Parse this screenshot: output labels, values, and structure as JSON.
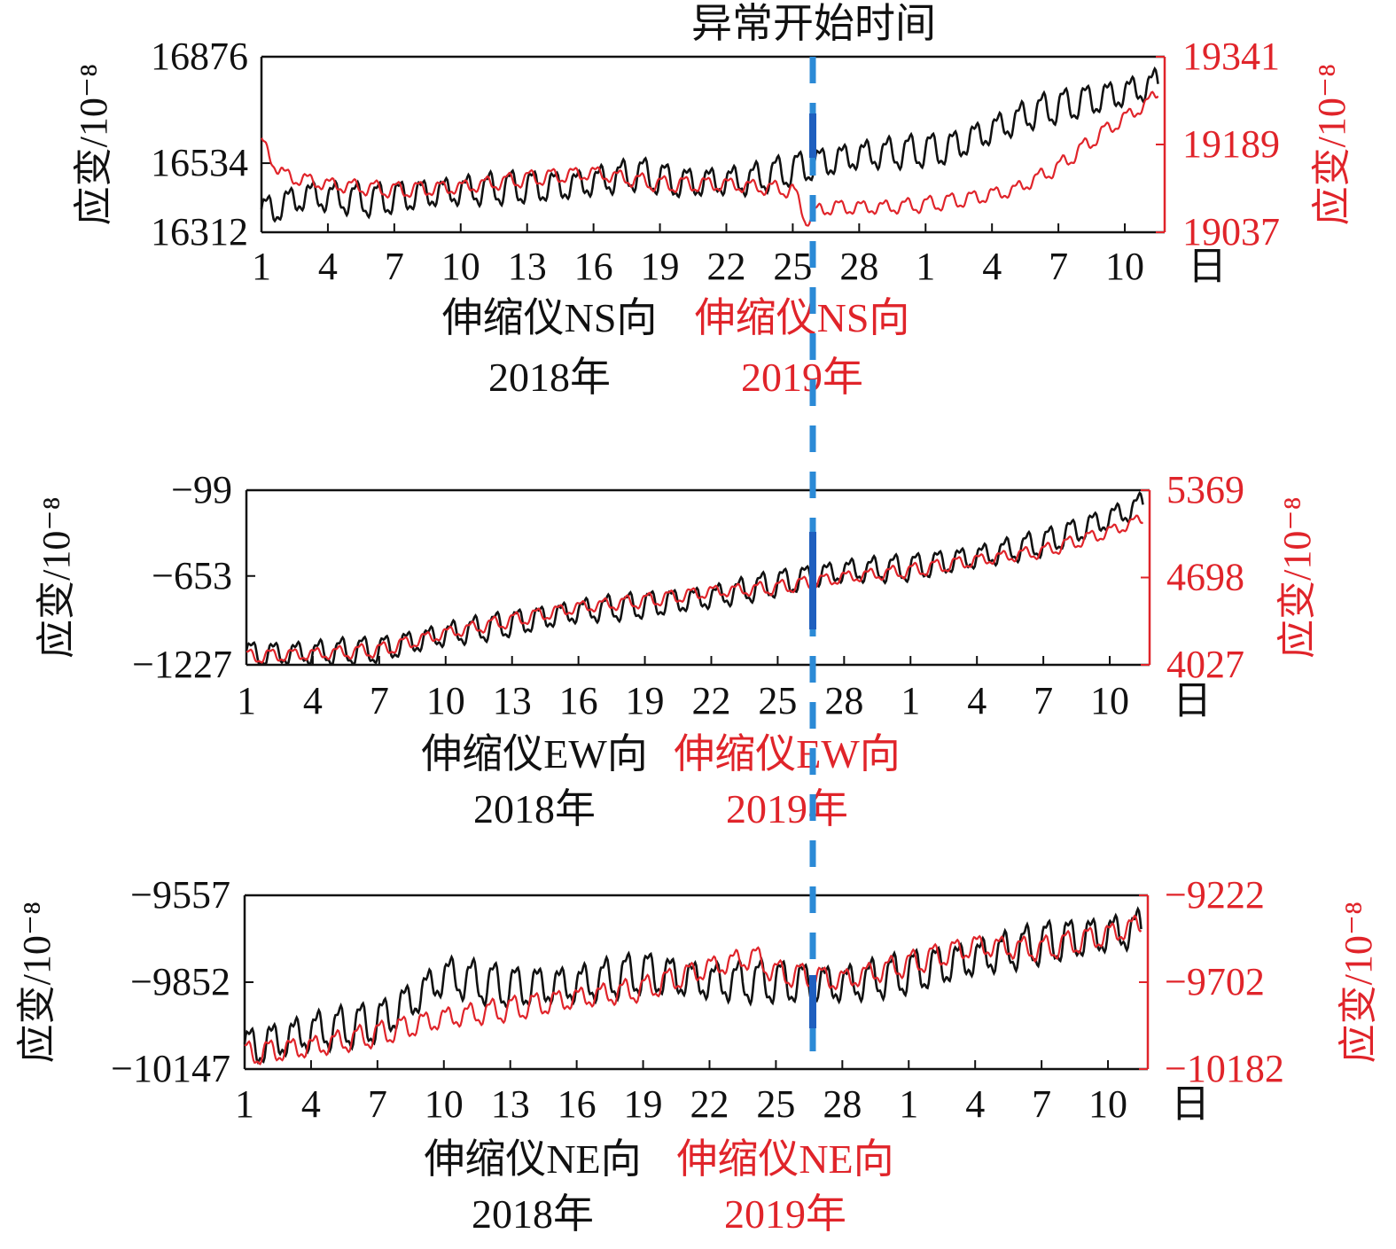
{
  "figure": {
    "title": "异常开始时间",
    "colors": {
      "series2018": "#111111",
      "series2019": "#e0242a",
      "marker": "#1f5fbf",
      "marker_light": "#2b8ad6"
    }
  },
  "chart_data": [
    {
      "type": "line",
      "x_tick_labels": [
        "1",
        "4",
        "7",
        "10",
        "13",
        "16",
        "19",
        "22",
        "25",
        "28",
        "1",
        "4",
        "7",
        "10"
      ],
      "x_unit_label": "日",
      "ylabel_left": "应变/10⁻⁸",
      "ylabel_right": "应变/10⁻⁸",
      "left_axis": {
        "ticks": [
          "16876",
          "16534",
          "16312"
        ],
        "ylim": [
          16312,
          16876
        ]
      },
      "right_axis": {
        "ticks": [
          "19341",
          "19189",
          "19037"
        ],
        "ylim": [
          19037,
          19341
        ]
      },
      "series": [
        {
          "name": "伸缩仪NS向",
          "year": "2018年",
          "axis": "left",
          "color": "#111111",
          "trend": [
            [
              1,
              16372
            ],
            [
              3,
              16430
            ],
            [
              6,
              16415
            ],
            [
              9,
              16440
            ],
            [
              12,
              16455
            ],
            [
              15,
              16462
            ],
            [
              18,
              16500
            ],
            [
              20,
              16470
            ],
            [
              23,
              16480
            ],
            [
              26,
              16530
            ],
            [
              28,
              16560
            ],
            [
              32,
              16580
            ],
            [
              36,
              16700
            ],
            [
              40,
              16760
            ],
            [
              41.5,
              16790
            ]
          ],
          "amplitude": 55
        },
        {
          "name": "伸缩仪NS向",
          "year": "2019年",
          "axis": "right",
          "color": "#e0242a",
          "trend": [
            [
              1,
              19190
            ],
            [
              2,
              19135
            ],
            [
              4,
              19120
            ],
            [
              7,
              19110
            ],
            [
              10,
              19115
            ],
            [
              13,
              19130
            ],
            [
              16,
              19140
            ],
            [
              19,
              19120
            ],
            [
              22,
              19120
            ],
            [
              25,
              19110
            ],
            [
              25.6,
              19060
            ],
            [
              26.5,
              19080
            ],
            [
              29,
              19080
            ],
            [
              31,
              19085
            ],
            [
              33,
              19095
            ],
            [
              35,
              19110
            ],
            [
              37,
              19150
            ],
            [
              39,
              19210
            ],
            [
              41,
              19260
            ],
            [
              41.5,
              19280
            ]
          ],
          "amplitude": 14
        }
      ]
    },
    {
      "type": "line",
      "x_tick_labels": [
        "1",
        "4",
        "7",
        "10",
        "13",
        "16",
        "19",
        "22",
        "25",
        "28",
        "1",
        "4",
        "7",
        "10"
      ],
      "x_unit_label": "日",
      "ylabel_left": "应变/10⁻⁸",
      "ylabel_right": "应变/10⁻⁸",
      "left_axis": {
        "ticks": [
          "-99",
          "-653",
          "-1227"
        ],
        "ylim": [
          -1227,
          -99
        ]
      },
      "right_axis": {
        "ticks": [
          "5369",
          "4698",
          "4027"
        ],
        "ylim": [
          4027,
          5369
        ]
      },
      "series": [
        {
          "name": "伸缩仪EW向",
          "year": "2018年",
          "axis": "left",
          "color": "#111111",
          "trend": [
            [
              1,
              -1160
            ],
            [
              4,
              -1150
            ],
            [
              7,
              -1130
            ],
            [
              10,
              -1030
            ],
            [
              13,
              -960
            ],
            [
              16,
              -880
            ],
            [
              19,
              -840
            ],
            [
              22,
              -790
            ],
            [
              25,
              -700
            ],
            [
              28,
              -620
            ],
            [
              31,
              -600
            ],
            [
              34,
              -530
            ],
            [
              37,
              -440
            ],
            [
              40,
              -280
            ],
            [
              41.5,
              -190
            ]
          ],
          "amplitude": 90
        },
        {
          "name": "伸缩仪EW向",
          "year": "2019年",
          "axis": "right",
          "color": "#e0242a",
          "trend": [
            [
              1,
              4090
            ],
            [
              4,
              4110
            ],
            [
              7,
              4140
            ],
            [
              10,
              4270
            ],
            [
              13,
              4370
            ],
            [
              16,
              4470
            ],
            [
              19,
              4520
            ],
            [
              22,
              4590
            ],
            [
              25,
              4620
            ],
            [
              28,
              4700
            ],
            [
              31,
              4750
            ],
            [
              34,
              4830
            ],
            [
              37,
              4900
            ],
            [
              40,
              5050
            ],
            [
              41.5,
              5150
            ]
          ],
          "amplitude": 55
        }
      ]
    },
    {
      "type": "line",
      "x_tick_labels": [
        "1",
        "4",
        "7",
        "10",
        "13",
        "16",
        "19",
        "22",
        "25",
        "28",
        "1",
        "4",
        "7",
        "10"
      ],
      "x_unit_label": "日",
      "ylabel_left": "应变/10⁻⁸",
      "ylabel_right": "应变/10⁻⁸",
      "left_axis": {
        "ticks": [
          "-9557",
          "-9852",
          "-10147"
        ],
        "ylim": [
          -10147,
          -9557
        ]
      },
      "right_axis": {
        "ticks": [
          "-9222",
          "-9702",
          "-10182"
        ],
        "ylim": [
          -10182,
          -9222
        ]
      },
      "series": [
        {
          "name": "伸缩仪NE向",
          "year": "2018年",
          "axis": "left",
          "color": "#111111",
          "trend": [
            [
              1,
              -10080
            ],
            [
              4,
              -10020
            ],
            [
              7,
              -9990
            ],
            [
              9,
              -9890
            ],
            [
              10,
              -9830
            ],
            [
              13,
              -9870
            ],
            [
              16,
              -9860
            ],
            [
              19,
              -9820
            ],
            [
              22,
              -9850
            ],
            [
              25,
              -9850
            ],
            [
              28,
              -9860
            ],
            [
              31,
              -9820
            ],
            [
              34,
              -9770
            ],
            [
              37,
              -9720
            ],
            [
              40,
              -9690
            ],
            [
              41.5,
              -9670
            ]
          ],
          "amplitude": 75
        },
        {
          "name": "伸缩仪NE向",
          "year": "2019年",
          "axis": "right",
          "color": "#e0242a",
          "trend": [
            [
              1,
              -10100
            ],
            [
              4,
              -10060
            ],
            [
              7,
              -9990
            ],
            [
              10,
              -9900
            ],
            [
              13,
              -9850
            ],
            [
              16,
              -9790
            ],
            [
              19,
              -9740
            ],
            [
              22,
              -9620
            ],
            [
              24,
              -9560
            ],
            [
              25,
              -9650
            ],
            [
              28,
              -9690
            ],
            [
              31,
              -9600
            ],
            [
              34,
              -9500
            ],
            [
              37,
              -9520
            ],
            [
              40,
              -9440
            ],
            [
              41.5,
              -9380
            ]
          ],
          "amplitude": 70
        }
      ]
    }
  ]
}
